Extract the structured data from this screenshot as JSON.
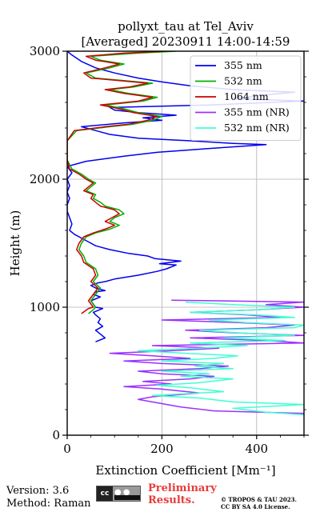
{
  "chart_data": {
    "type": "line",
    "title_line1": "pollyxt_tau at Tel_Aviv",
    "title_line2": "[Averaged] 20230911 14:00-14:59",
    "xlabel": "Extinction Coefficient [Mm⁻¹]",
    "ylabel": "Height (m)",
    "xlim": [
      0,
      500
    ],
    "ylim": [
      0,
      3000
    ],
    "xticks": [
      0,
      200,
      400
    ],
    "yticks": [
      0,
      1000,
      2000,
      3000
    ],
    "grid": true,
    "legend_position": "top-right",
    "series": [
      {
        "name": "355 nm",
        "color": "#0000ee",
        "points": [
          [
            60,
            730
          ],
          [
            80,
            760
          ],
          [
            70,
            790
          ],
          [
            60,
            820
          ],
          [
            75,
            850
          ],
          [
            65,
            880
          ],
          [
            70,
            910
          ],
          [
            60,
            940
          ],
          [
            55,
            960
          ],
          [
            75,
            990
          ],
          [
            60,
            1000
          ],
          [
            50,
            1050
          ],
          [
            70,
            1080
          ],
          [
            55,
            1100
          ],
          [
            60,
            1120
          ],
          [
            80,
            1130
          ],
          [
            60,
            1150
          ],
          [
            50,
            1170
          ],
          [
            65,
            1190
          ],
          [
            80,
            1200
          ],
          [
            100,
            1220
          ],
          [
            150,
            1250
          ],
          [
            190,
            1280
          ],
          [
            210,
            1300
          ],
          [
            230,
            1330
          ],
          [
            195,
            1340
          ],
          [
            240,
            1360
          ],
          [
            185,
            1380
          ],
          [
            170,
            1400
          ],
          [
            130,
            1420
          ],
          [
            90,
            1450
          ],
          [
            60,
            1480
          ],
          [
            45,
            1510
          ],
          [
            30,
            1540
          ],
          [
            15,
            1570
          ],
          [
            5,
            1600
          ],
          [
            10,
            1650
          ],
          [
            5,
            1700
          ],
          [
            0,
            1750
          ],
          [
            0,
            1800
          ],
          [
            5,
            1850
          ],
          [
            0,
            1900
          ],
          [
            5,
            1950
          ],
          [
            0,
            2000
          ],
          [
            10,
            2050
          ],
          [
            0,
            2100
          ],
          [
            40,
            2140
          ],
          [
            120,
            2180
          ],
          [
            190,
            2210
          ],
          [
            300,
            2240
          ],
          [
            420,
            2270
          ],
          [
            350,
            2280
          ],
          [
            260,
            2300
          ],
          [
            150,
            2320
          ],
          [
            90,
            2350
          ],
          [
            60,
            2380
          ],
          [
            30,
            2410
          ],
          [
            120,
            2440
          ],
          [
            200,
            2460
          ],
          [
            160,
            2480
          ],
          [
            230,
            2500
          ],
          [
            150,
            2520
          ],
          [
            100,
            2540
          ],
          [
            90,
            2560
          ],
          [
            300,
            2580
          ],
          [
            500,
            2610
          ],
          [
            350,
            2630
          ],
          [
            420,
            2660
          ],
          [
            480,
            2680
          ],
          [
            350,
            2700
          ],
          [
            260,
            2730
          ],
          [
            200,
            2760
          ],
          [
            150,
            2790
          ],
          [
            100,
            2830
          ],
          [
            60,
            2870
          ],
          [
            30,
            2920
          ],
          [
            10,
            2970
          ],
          [
            0,
            3000
          ]
        ]
      },
      {
        "name": "532 nm",
        "color": "#00b000",
        "points": [
          [
            45,
            950
          ],
          [
            55,
            980
          ],
          [
            60,
            1000
          ],
          [
            50,
            1050
          ],
          [
            60,
            1100
          ],
          [
            70,
            1150
          ],
          [
            55,
            1200
          ],
          [
            65,
            1250
          ],
          [
            60,
            1300
          ],
          [
            40,
            1350
          ],
          [
            35,
            1400
          ],
          [
            25,
            1450
          ],
          [
            30,
            1500
          ],
          [
            40,
            1550
          ],
          [
            60,
            1580
          ],
          [
            90,
            1610
          ],
          [
            110,
            1640
          ],
          [
            90,
            1670
          ],
          [
            100,
            1700
          ],
          [
            120,
            1730
          ],
          [
            110,
            1760
          ],
          [
            80,
            1790
          ],
          [
            70,
            1820
          ],
          [
            55,
            1850
          ],
          [
            60,
            1880
          ],
          [
            40,
            1910
          ],
          [
            50,
            1940
          ],
          [
            60,
            1970
          ],
          [
            45,
            2000
          ],
          [
            30,
            2040
          ],
          [
            10,
            2080
          ],
          [
            0,
            2150
          ],
          [
            0,
            2300
          ],
          [
            20,
            2380
          ],
          [
            90,
            2410
          ],
          [
            140,
            2430
          ],
          [
            180,
            2460
          ],
          [
            200,
            2490
          ],
          [
            150,
            2520
          ],
          [
            120,
            2550
          ],
          [
            80,
            2580
          ],
          [
            160,
            2610
          ],
          [
            190,
            2640
          ],
          [
            130,
            2670
          ],
          [
            90,
            2700
          ],
          [
            140,
            2720
          ],
          [
            180,
            2750
          ],
          [
            120,
            2770
          ],
          [
            60,
            2790
          ],
          [
            40,
            2830
          ],
          [
            90,
            2870
          ],
          [
            120,
            2900
          ],
          [
            70,
            2930
          ],
          [
            50,
            2960
          ],
          [
            150,
            2985
          ],
          [
            230,
            3000
          ]
        ]
      },
      {
        "name": "1064 nm",
        "color": "#cc0000",
        "points": [
          [
            30,
            950
          ],
          [
            45,
            990
          ],
          [
            55,
            1000
          ],
          [
            45,
            1050
          ],
          [
            55,
            1100
          ],
          [
            65,
            1150
          ],
          [
            50,
            1200
          ],
          [
            60,
            1250
          ],
          [
            55,
            1300
          ],
          [
            35,
            1350
          ],
          [
            30,
            1400
          ],
          [
            20,
            1450
          ],
          [
            25,
            1500
          ],
          [
            35,
            1550
          ],
          [
            55,
            1580
          ],
          [
            80,
            1610
          ],
          [
            100,
            1640
          ],
          [
            80,
            1670
          ],
          [
            95,
            1700
          ],
          [
            110,
            1730
          ],
          [
            100,
            1760
          ],
          [
            70,
            1790
          ],
          [
            60,
            1820
          ],
          [
            50,
            1850
          ],
          [
            55,
            1880
          ],
          [
            35,
            1910
          ],
          [
            45,
            1940
          ],
          [
            55,
            1970
          ],
          [
            40,
            2000
          ],
          [
            25,
            2040
          ],
          [
            5,
            2080
          ],
          [
            0,
            2150
          ],
          [
            0,
            2300
          ],
          [
            15,
            2380
          ],
          [
            80,
            2410
          ],
          [
            130,
            2430
          ],
          [
            170,
            2460
          ],
          [
            190,
            2490
          ],
          [
            140,
            2520
          ],
          [
            110,
            2550
          ],
          [
            70,
            2580
          ],
          [
            150,
            2610
          ],
          [
            180,
            2640
          ],
          [
            120,
            2670
          ],
          [
            80,
            2700
          ],
          [
            130,
            2720
          ],
          [
            170,
            2750
          ],
          [
            110,
            2770
          ],
          [
            50,
            2790
          ],
          [
            35,
            2830
          ],
          [
            80,
            2870
          ],
          [
            110,
            2900
          ],
          [
            60,
            2930
          ],
          [
            40,
            2960
          ],
          [
            120,
            2985
          ],
          [
            210,
            3000
          ]
        ]
      },
      {
        "name": "355 nm (NR)",
        "color": "#9b30ff",
        "points": [
          [
            500,
            170
          ],
          [
            310,
            190
          ],
          [
            240,
            220
          ],
          [
            150,
            280
          ],
          [
            180,
            300
          ],
          [
            280,
            330
          ],
          [
            200,
            360
          ],
          [
            120,
            380
          ],
          [
            220,
            400
          ],
          [
            160,
            420
          ],
          [
            260,
            440
          ],
          [
            310,
            460
          ],
          [
            200,
            480
          ],
          [
            150,
            500
          ],
          [
            280,
            520
          ],
          [
            340,
            540
          ],
          [
            200,
            560
          ],
          [
            120,
            580
          ],
          [
            260,
            600
          ],
          [
            180,
            620
          ],
          [
            90,
            640
          ],
          [
            220,
            660
          ],
          [
            320,
            680
          ],
          [
            180,
            700
          ],
          [
            500,
            720
          ],
          [
            420,
            740
          ],
          [
            260,
            760
          ],
          [
            500,
            780
          ],
          [
            350,
            800
          ],
          [
            250,
            820
          ],
          [
            420,
            840
          ],
          [
            480,
            860
          ],
          [
            360,
            880
          ],
          [
            200,
            900
          ],
          [
            450,
            920
          ],
          [
            380,
            940
          ],
          [
            260,
            960
          ],
          [
            400,
            980
          ],
          [
            500,
            1000
          ],
          [
            420,
            1020
          ],
          [
            500,
            1040
          ],
          [
            220,
            1055
          ]
        ]
      },
      {
        "name": "532 nm (NR)",
        "color": "#40ffd0",
        "points": [
          [
            500,
            160
          ],
          [
            420,
            180
          ],
          [
            350,
            210
          ],
          [
            500,
            240
          ],
          [
            350,
            260
          ],
          [
            280,
            290
          ],
          [
            180,
            310
          ],
          [
            330,
            340
          ],
          [
            260,
            370
          ],
          [
            190,
            390
          ],
          [
            280,
            410
          ],
          [
            350,
            440
          ],
          [
            240,
            460
          ],
          [
            300,
            480
          ],
          [
            200,
            500
          ],
          [
            350,
            520
          ],
          [
            270,
            540
          ],
          [
            330,
            560
          ],
          [
            200,
            580
          ],
          [
            310,
            600
          ],
          [
            360,
            620
          ],
          [
            250,
            640
          ],
          [
            150,
            660
          ],
          [
            280,
            680
          ],
          [
            380,
            700
          ],
          [
            260,
            720
          ],
          [
            460,
            740
          ],
          [
            330,
            760
          ],
          [
            480,
            780
          ],
          [
            360,
            800
          ],
          [
            280,
            820
          ],
          [
            480,
            840
          ],
          [
            500,
            860
          ],
          [
            380,
            880
          ],
          [
            300,
            900
          ],
          [
            480,
            920
          ],
          [
            400,
            940
          ],
          [
            260,
            960
          ],
          [
            400,
            980
          ],
          [
            480,
            1000
          ],
          [
            350,
            1020
          ],
          [
            250,
            1040
          ]
        ]
      }
    ]
  },
  "footer": {
    "version": "Version: 3.6",
    "method": "Method: Raman",
    "preliminary_line1": "Preliminary",
    "preliminary_line2": "Results.",
    "copyright_line1": "© TROPOS & TAU 2023.",
    "copyright_line2": "CC BY SA 4.0 License.",
    "cc_badge": "cc"
  }
}
